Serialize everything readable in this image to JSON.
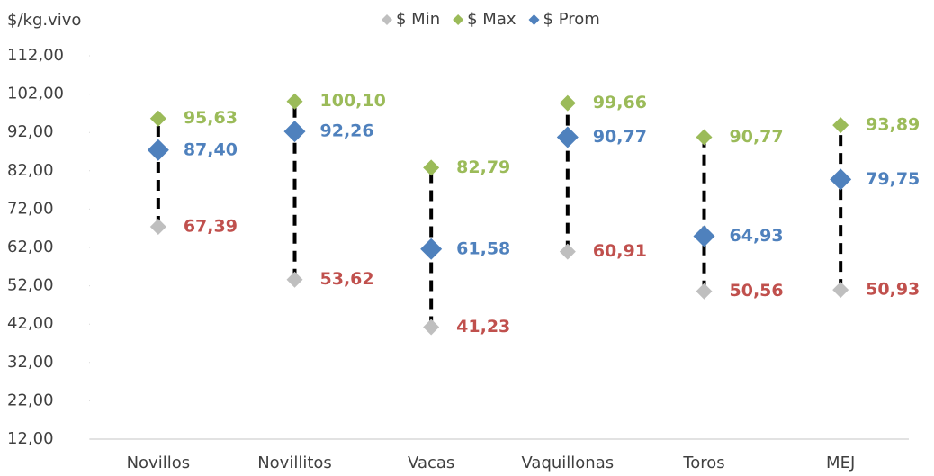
{
  "chart_data": {
    "type": "dot-range",
    "y_axis_label": "$/kg.vivo",
    "categories": [
      "Novillos",
      "Novillitos",
      "Vacas",
      "Vaquillonas",
      "Toros",
      "MEJ"
    ],
    "series": [
      {
        "name": "$ Min",
        "color": "#bfbfbf",
        "label_color": "#c0504d",
        "size": 9,
        "values": [
          67.39,
          53.62,
          41.23,
          60.91,
          50.56,
          50.93
        ],
        "value_labels": [
          "67,39",
          "53,62",
          "41,23",
          "60,91",
          "50,56",
          "50,93"
        ]
      },
      {
        "name": "$ Max",
        "color": "#9bbb59",
        "label_color": "#9bbb59",
        "size": 9,
        "values": [
          95.63,
          100.1,
          82.79,
          99.66,
          90.77,
          93.89
        ],
        "value_labels": [
          "95,63",
          "100,10",
          "82,79",
          "99,66",
          "90,77",
          "93,89"
        ]
      },
      {
        "name": "$ Prom",
        "color": "#4f81bd",
        "label_color": "#4f81bd",
        "size": 12,
        "values": [
          87.4,
          92.26,
          61.58,
          90.77,
          64.93,
          79.75
        ],
        "value_labels": [
          "87,40",
          "92,26",
          "61,58",
          "90,77",
          "64,93",
          "79,75"
        ]
      }
    ],
    "ylim": [
      12,
      112
    ],
    "yticks": [
      {
        "value": 12,
        "label": "12,00"
      },
      {
        "value": 22,
        "label": "22,00"
      },
      {
        "value": 32,
        "label": "32,00"
      },
      {
        "value": 42,
        "label": "42,00"
      },
      {
        "value": 52,
        "label": "52,00"
      },
      {
        "value": 62,
        "label": "62,00"
      },
      {
        "value": 72,
        "label": "72,00"
      },
      {
        "value": 82,
        "label": "82,00"
      },
      {
        "value": 92,
        "label": "92,00"
      },
      {
        "value": 102,
        "label": "102,00"
      },
      {
        "value": 112,
        "label": "112,00"
      }
    ],
    "range_line_color": "#000000"
  }
}
